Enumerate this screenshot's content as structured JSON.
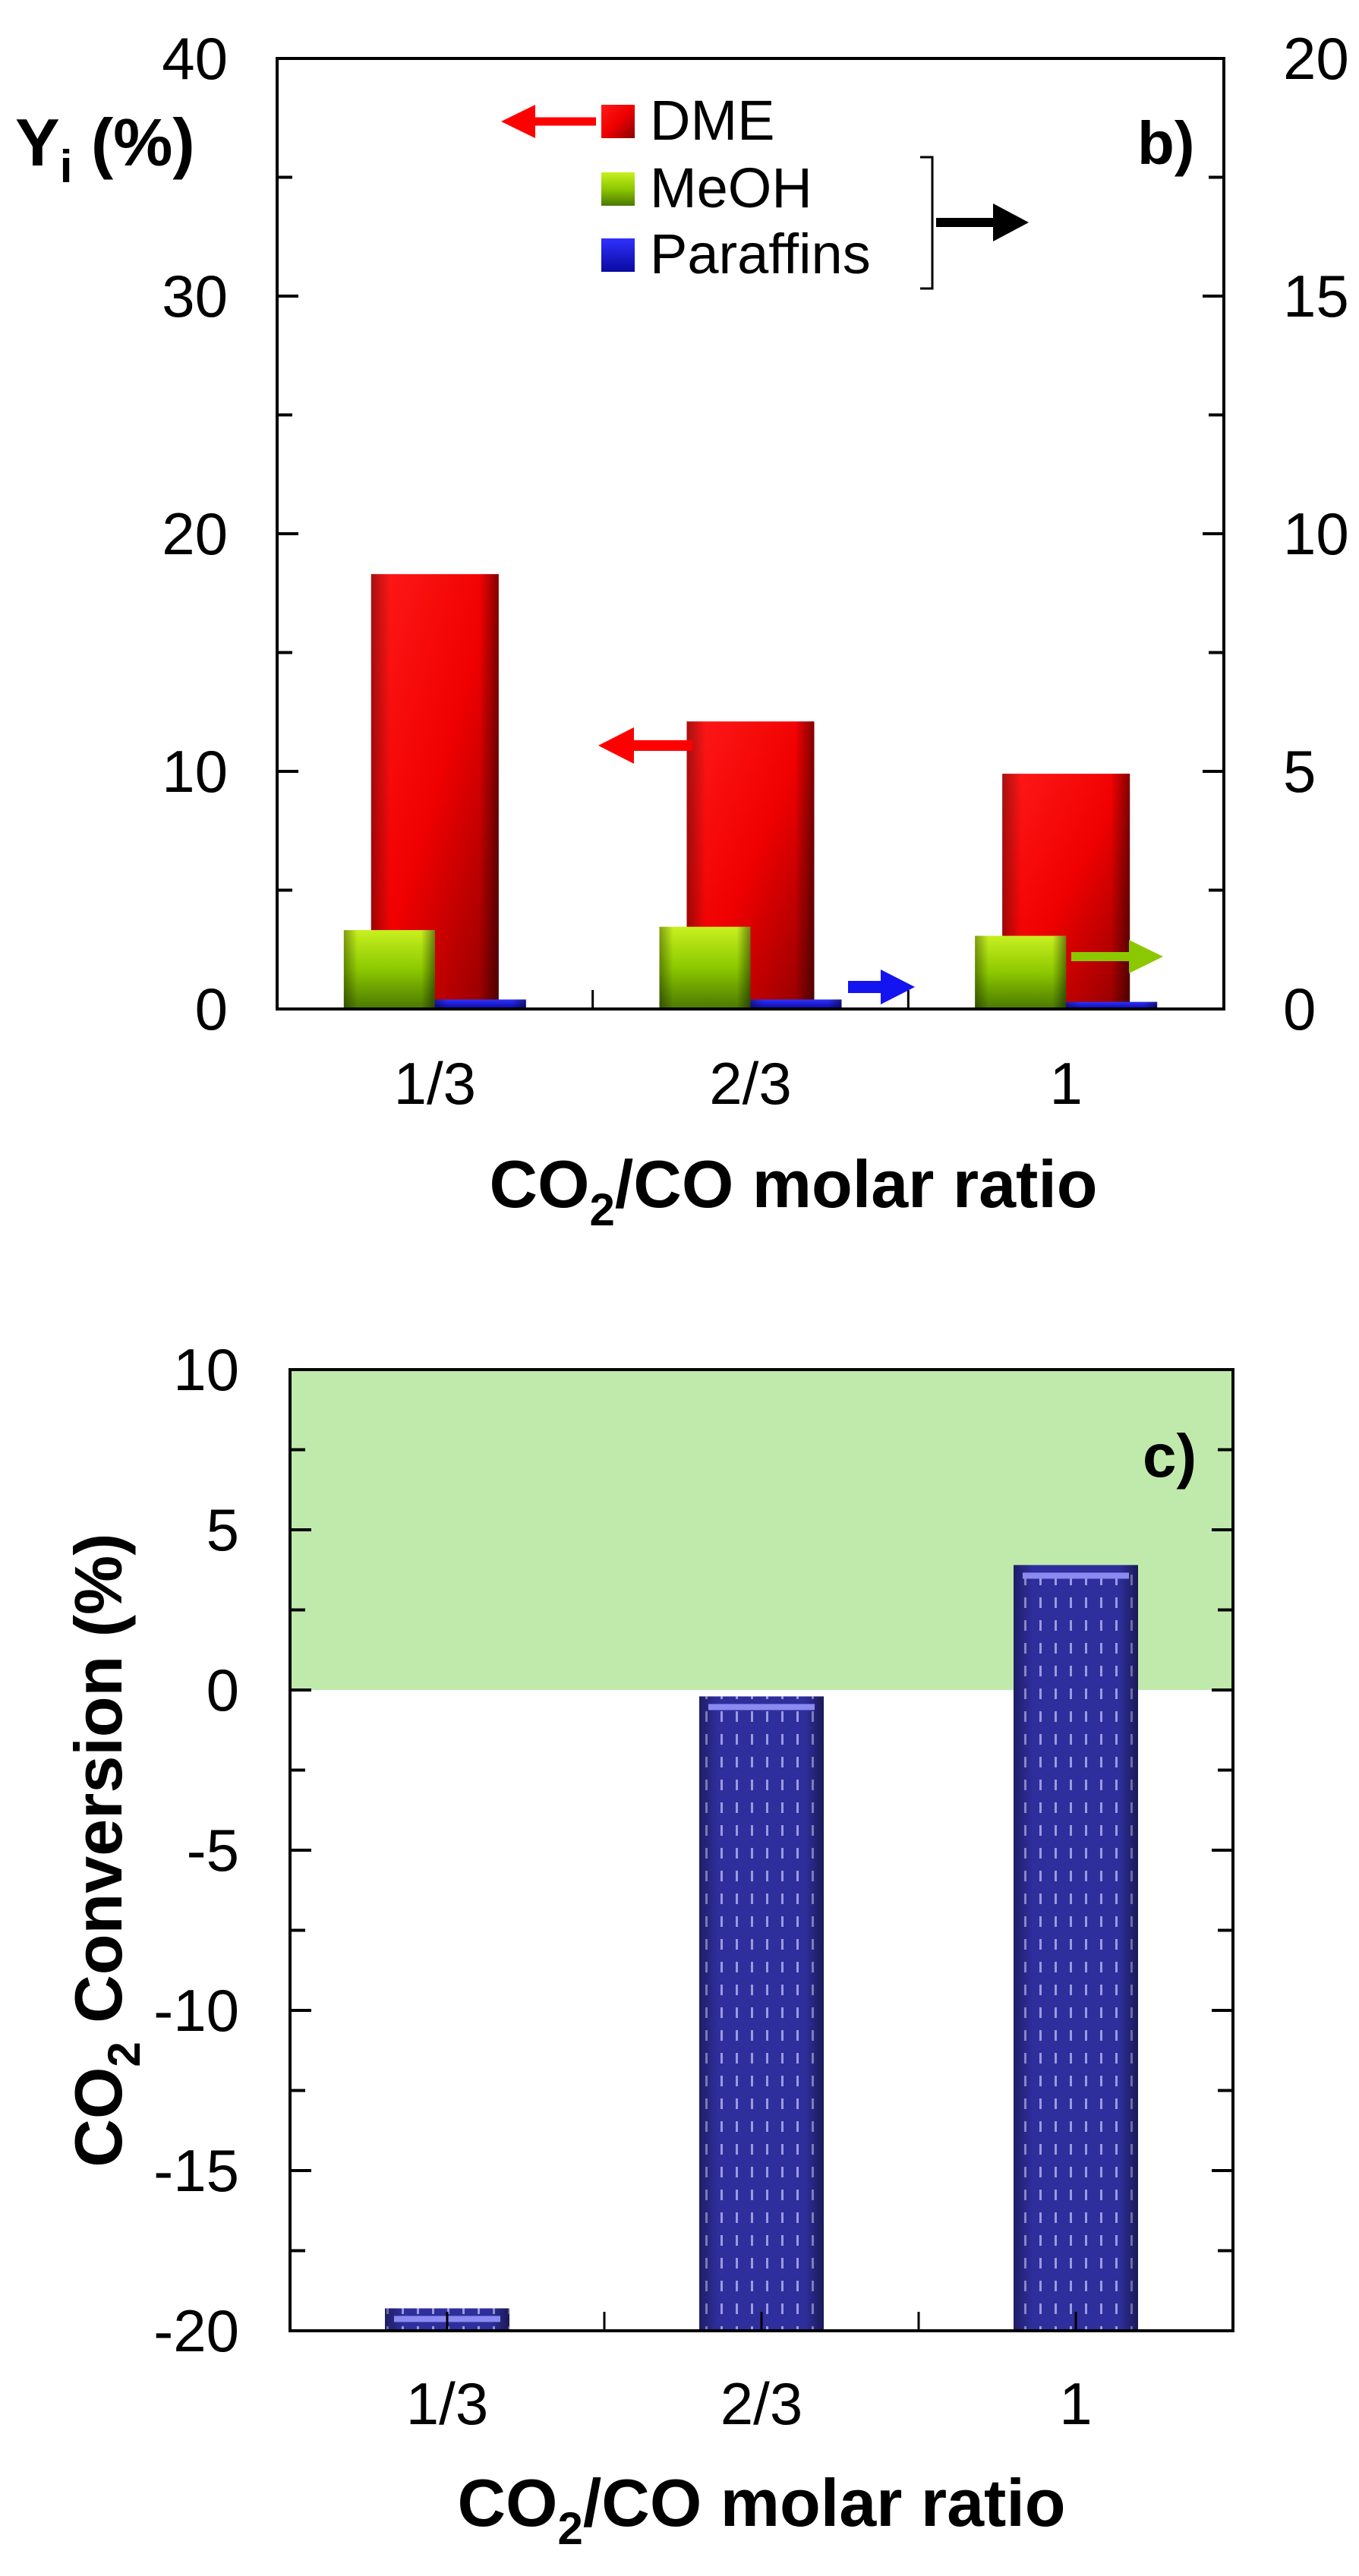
{
  "chart_data": [
    {
      "type": "bar",
      "panel_label": "b)",
      "categories": [
        "1/3",
        "2/3",
        "1"
      ],
      "xlabel": {
        "main": "CO",
        "sub": "2",
        "rest": "/CO molar ratio"
      },
      "ylabel": {
        "main": "Y",
        "sub": "i",
        "rest": " (%)"
      },
      "ylim": [
        0,
        40
      ],
      "yticks": [
        "0",
        "10",
        "20",
        "30",
        "40"
      ],
      "y2lim": [
        0,
        20
      ],
      "y2ticks": [
        "0",
        "5",
        "10",
        "15",
        "20"
      ],
      "series": [
        {
          "name": "DME",
          "axis": "left",
          "color": "#ff0000",
          "values": [
            18.3,
            12.1,
            9.9
          ]
        },
        {
          "name": "MeOH",
          "axis": "right",
          "color": "#8cc800",
          "values": [
            1.66,
            1.73,
            1.54
          ]
        },
        {
          "name": "Paraffins",
          "axis": "right",
          "color": "#1414e6",
          "values": [
            0.2,
            0.2,
            0.15
          ]
        }
      ],
      "legend": {
        "placement": "top-center",
        "entries": [
          "DME",
          "MeOH",
          "Paraffins"
        ]
      }
    },
    {
      "type": "bar",
      "panel_label": "c)",
      "categories": [
        "1/3",
        "2/3",
        "1"
      ],
      "xlabel": {
        "main": "CO",
        "sub": "2",
        "rest": "/CO molar ratio"
      },
      "ylabel": {
        "main": "CO",
        "sub": "2",
        "rest": " Conversion (%)"
      },
      "ylim": [
        -20,
        10
      ],
      "yticks": [
        "-20",
        "-15",
        "-10",
        "-5",
        "0",
        "5",
        "10"
      ],
      "shaded_region": {
        "from": 0,
        "to": 10,
        "color": "#c0eaab"
      },
      "series": [
        {
          "name": "CO2 Conversion",
          "color": "#2e2e9c",
          "values": [
            -19.3,
            -0.2,
            3.9
          ]
        }
      ]
    }
  ]
}
